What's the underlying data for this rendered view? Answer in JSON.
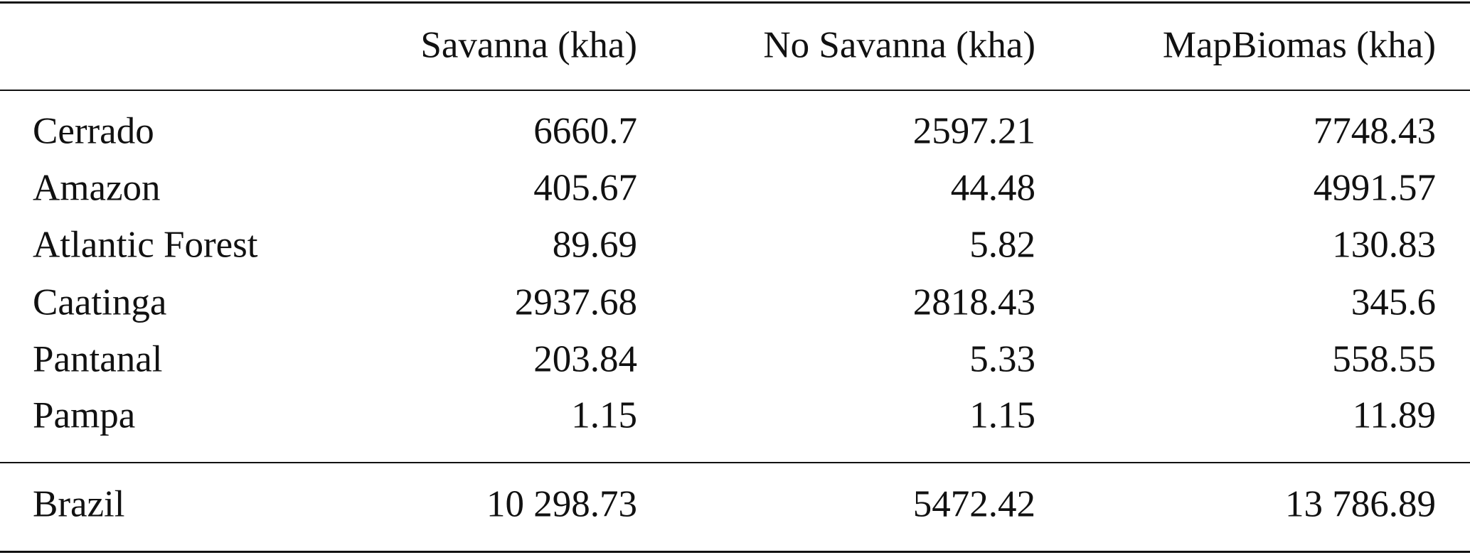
{
  "table": {
    "header": [
      "Savanna (kha)",
      "No Savanna (kha)",
      "MapBiomas (kha)"
    ],
    "rows": [
      [
        "Cerrado",
        "6660.7",
        "2597.21",
        "7748.43"
      ],
      [
        "Amazon",
        "405.67",
        "44.48",
        "4991.57"
      ],
      [
        "Atlantic Forest",
        "89.69",
        "5.82",
        "130.83"
      ],
      [
        "Caatinga",
        "2937.68",
        "2818.43",
        "345.6"
      ],
      [
        "Pantanal",
        "203.84",
        "5.33",
        "558.55"
      ],
      [
        "Pampa",
        "1.15",
        "1.15",
        "11.89"
      ]
    ],
    "total": [
      "Brazil",
      "10 298.73",
      "5472.42",
      "13 786.89"
    ]
  }
}
